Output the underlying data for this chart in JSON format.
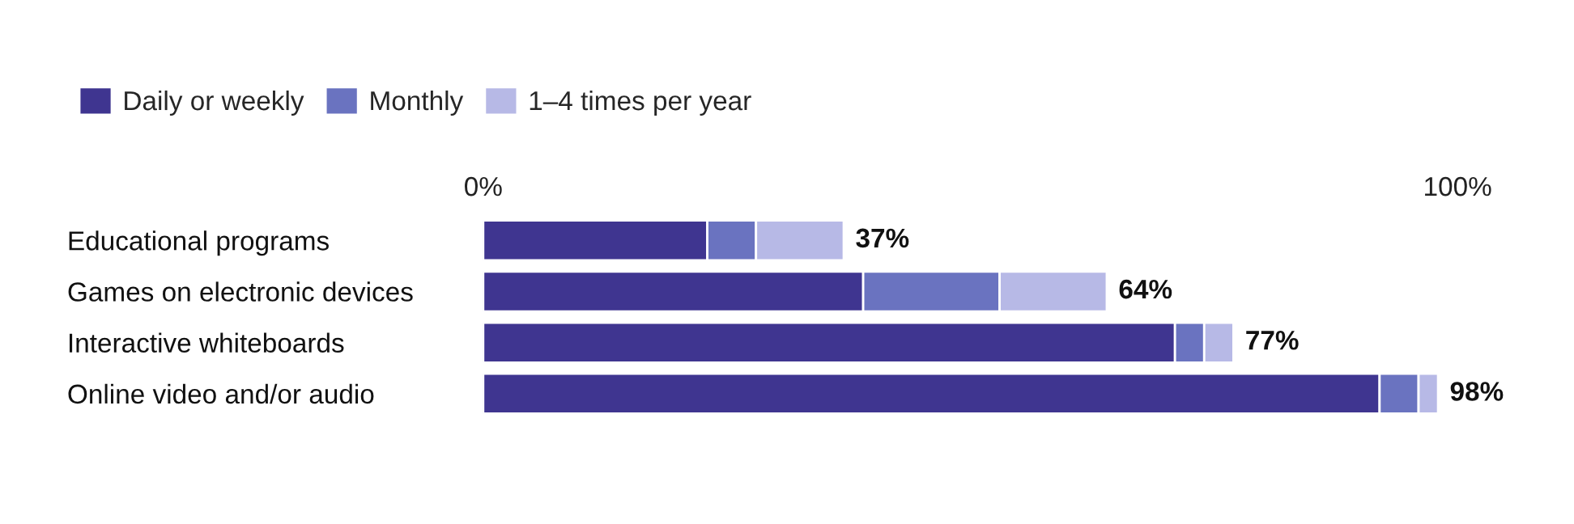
{
  "chart_data": {
    "type": "bar",
    "orientation": "horizontal",
    "stacked": true,
    "categories": [
      "Educational programs",
      "Games on electronic devices",
      "Interactive whiteboards",
      "Online video and/or audio"
    ],
    "series": [
      {
        "name": "Daily or weekly",
        "color": "#3f3590",
        "values": [
          23,
          39,
          71,
          92
        ]
      },
      {
        "name": "Monthly",
        "color": "#6a73c0",
        "values": [
          5,
          14,
          3,
          4
        ]
      },
      {
        "name": "1–4 times per year",
        "color": "#b7b9e6",
        "values": [
          9,
          11,
          3,
          2
        ]
      }
    ],
    "totals": [
      "37%",
      "64%",
      "77%",
      "98%"
    ],
    "xlim": [
      0,
      100
    ],
    "xticks": [
      {
        "value": 0,
        "label": "0%"
      },
      {
        "value": 100,
        "label": "100%"
      }
    ],
    "legend": "top left",
    "grid": false
  }
}
